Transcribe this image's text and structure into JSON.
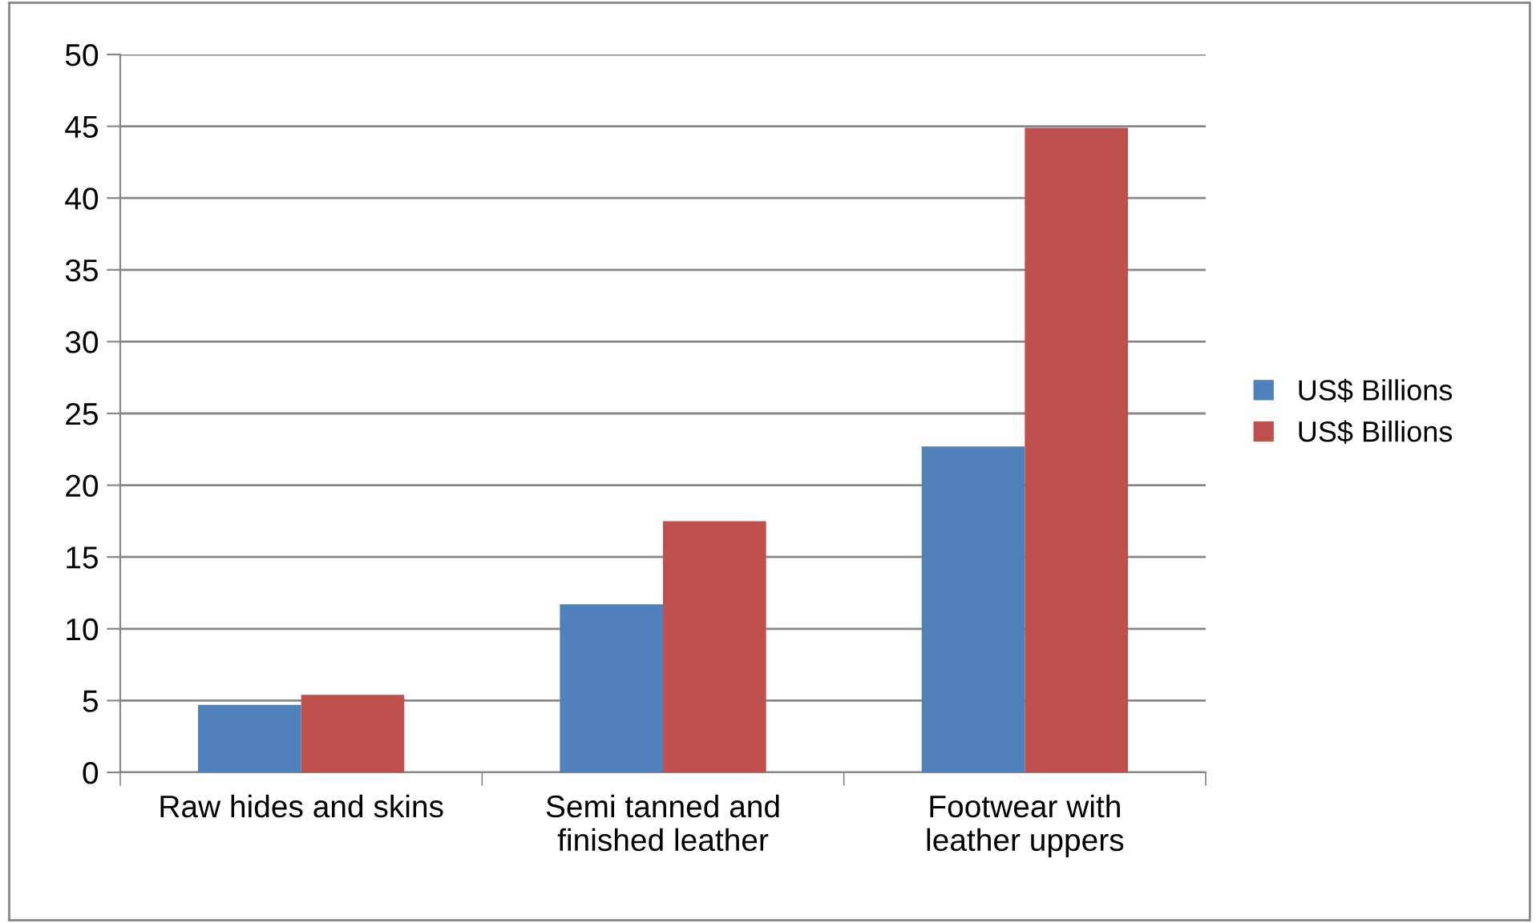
{
  "chart_data": {
    "type": "bar",
    "categories": [
      "Raw hides and skins",
      "Semi tanned and\nfinished leather",
      "Footwear with\nleather uppers"
    ],
    "series": [
      {
        "name": "US$ Billions",
        "color": "#4f81bd",
        "values": [
          4.7,
          11.7,
          22.7
        ]
      },
      {
        "name": "US$ Billions",
        "color": "#c0504d",
        "values": [
          5.4,
          17.5,
          44.9
        ]
      }
    ],
    "ylim": [
      0,
      50
    ],
    "yticks": [
      0,
      5,
      10,
      15,
      20,
      25,
      30,
      35,
      40,
      45,
      50
    ],
    "grid": "y",
    "legend": "right"
  }
}
